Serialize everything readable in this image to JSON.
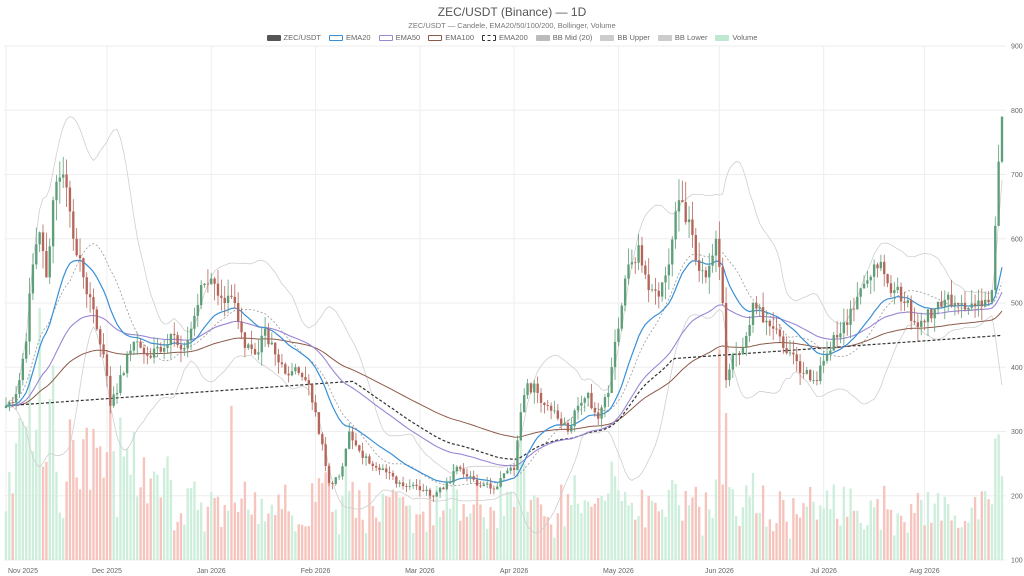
{
  "chart_data": {
    "type": "candlestick",
    "title": "ZEC/USDT (Binance) — 1D",
    "subtitle": "ZEC/USDT — Candele, EMA20/50/100/200, Bollinger, Volume",
    "legend": [
      {
        "name": "ZEC/USDT",
        "color": "#555555",
        "style": "fill"
      },
      {
        "name": "EMA20",
        "color": "#3a8fd6",
        "style": "line"
      },
      {
        "name": "EMA50",
        "color": "#9b86d6",
        "style": "line"
      },
      {
        "name": "EMA100",
        "color": "#8d5a4a",
        "style": "line"
      },
      {
        "name": "EMA200",
        "color": "#333333",
        "style": "dashed"
      },
      {
        "name": "BB Mid (20)",
        "color": "#bbbbbb",
        "style": "fill"
      },
      {
        "name": "BB Upper",
        "color": "#cccccc",
        "style": "fill"
      },
      {
        "name": "BB Lower",
        "color": "#cccccc",
        "style": "fill"
      },
      {
        "name": "Volume",
        "color": "#bfe8d0",
        "style": "fill"
      }
    ],
    "x_ticks": [
      "Nov 2025",
      "Dec 2025",
      "Jan 2026",
      "Feb 2026",
      "Mar 2026",
      "Apr 2026",
      "May 2026",
      "Jun 2026",
      "Jul 2026",
      "Aug 2026"
    ],
    "y_ticks": [
      100,
      200,
      300,
      400,
      500,
      600,
      700,
      800,
      900
    ],
    "ylim": [
      100,
      900
    ],
    "legend_position": "top-center",
    "grid": true,
    "colors": {
      "up": "#5e9e78",
      "down": "#b5665a",
      "up_volume": "#cdeedb",
      "down_volume": "#f6c4bd"
    },
    "close_anchors": [
      [
        "2025-11-01",
        340
      ],
      [
        "2025-11-03",
        345
      ],
      [
        "2025-11-05",
        380
      ],
      [
        "2025-11-07",
        440
      ],
      [
        "2025-11-09",
        560
      ],
      [
        "2025-11-11",
        610
      ],
      [
        "2025-11-13",
        540
      ],
      [
        "2025-11-15",
        660
      ],
      [
        "2025-11-18",
        700
      ],
      [
        "2025-11-21",
        600
      ],
      [
        "2025-11-24",
        540
      ],
      [
        "2025-11-27",
        490
      ],
      [
        "2025-11-30",
        420
      ],
      [
        "2025-12-02",
        340
      ],
      [
        "2025-12-04",
        360
      ],
      [
        "2025-12-07",
        420
      ],
      [
        "2025-12-10",
        440
      ],
      [
        "2025-12-14",
        415
      ],
      [
        "2025-12-18",
        430
      ],
      [
        "2025-12-21",
        450
      ],
      [
        "2025-12-24",
        430
      ],
      [
        "2025-12-27",
        480
      ],
      [
        "2025-12-30",
        530
      ],
      [
        "2026-01-02",
        530
      ],
      [
        "2026-01-05",
        500
      ],
      [
        "2026-01-08",
        500
      ],
      [
        "2026-01-11",
        430
      ],
      [
        "2026-01-14",
        420
      ],
      [
        "2026-01-17",
        460
      ],
      [
        "2026-01-20",
        420
      ],
      [
        "2026-01-23",
        390
      ],
      [
        "2026-01-26",
        400
      ],
      [
        "2026-01-29",
        380
      ],
      [
        "2026-02-01",
        330
      ],
      [
        "2026-02-03",
        280
      ],
      [
        "2026-02-05",
        220
      ],
      [
        "2026-02-08",
        230
      ],
      [
        "2026-02-11",
        300
      ],
      [
        "2026-02-14",
        270
      ],
      [
        "2026-02-17",
        250
      ],
      [
        "2026-02-20",
        240
      ],
      [
        "2026-02-24",
        230
      ],
      [
        "2026-02-27",
        215
      ],
      [
        "2026-03-03",
        215
      ],
      [
        "2026-03-07",
        200
      ],
      [
        "2026-03-11",
        210
      ],
      [
        "2026-03-15",
        245
      ],
      [
        "2026-03-18",
        230
      ],
      [
        "2026-03-22",
        215
      ],
      [
        "2026-03-26",
        210
      ],
      [
        "2026-03-29",
        235
      ],
      [
        "2026-04-01",
        240
      ],
      [
        "2026-04-03",
        330
      ],
      [
        "2026-04-05",
        375
      ],
      [
        "2026-04-08",
        360
      ],
      [
        "2026-04-11",
        340
      ],
      [
        "2026-04-14",
        320
      ],
      [
        "2026-04-17",
        300
      ],
      [
        "2026-04-20",
        340
      ],
      [
        "2026-04-23",
        360
      ],
      [
        "2026-04-26",
        320
      ],
      [
        "2026-04-29",
        360
      ],
      [
        "2026-05-02",
        460
      ],
      [
        "2026-05-05",
        560
      ],
      [
        "2026-05-08",
        590
      ],
      [
        "2026-05-11",
        520
      ],
      [
        "2026-05-14",
        510
      ],
      [
        "2026-05-17",
        560
      ],
      [
        "2026-05-20",
        660
      ],
      [
        "2026-05-23",
        630
      ],
      [
        "2026-05-26",
        550
      ],
      [
        "2026-05-28",
        540
      ],
      [
        "2026-05-31",
        600
      ],
      [
        "2026-06-02",
        500
      ],
      [
        "2026-06-03",
        380
      ],
      [
        "2026-06-05",
        420
      ],
      [
        "2026-06-08",
        430
      ],
      [
        "2026-06-11",
        500
      ],
      [
        "2026-06-14",
        470
      ],
      [
        "2026-06-17",
        460
      ],
      [
        "2026-06-20",
        430
      ],
      [
        "2026-06-23",
        420
      ],
      [
        "2026-06-26",
        390
      ],
      [
        "2026-06-29",
        380
      ],
      [
        "2026-07-02",
        410
      ],
      [
        "2026-07-05",
        450
      ],
      [
        "2026-07-08",
        470
      ],
      [
        "2026-07-11",
        490
      ],
      [
        "2026-07-14",
        530
      ],
      [
        "2026-07-17",
        560
      ],
      [
        "2026-07-20",
        545
      ],
      [
        "2026-07-23",
        520
      ],
      [
        "2026-07-26",
        500
      ],
      [
        "2026-07-29",
        470
      ],
      [
        "2026-08-01",
        470
      ],
      [
        "2026-08-04",
        490
      ],
      [
        "2026-08-07",
        505
      ],
      [
        "2026-08-10",
        500
      ],
      [
        "2026-08-13",
        490
      ],
      [
        "2026-08-16",
        495
      ],
      [
        "2026-08-19",
        505
      ],
      [
        "2026-08-21",
        520
      ],
      [
        "2026-08-22",
        620
      ],
      [
        "2026-08-23",
        720
      ],
      [
        "2026-08-24",
        790
      ]
    ]
  }
}
